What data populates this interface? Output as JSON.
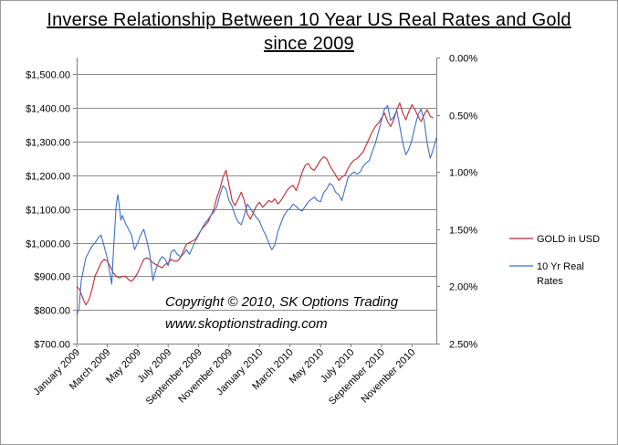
{
  "chart_data": {
    "type": "line",
    "title": "Inverse Relationship Between 10 Year US Real Rates and Gold since 2009",
    "title_lines": [
      "Inverse Relationship Between 10 Year US Real Rates and Gold",
      "since 2009"
    ],
    "x_tick_labels": [
      "January 2009",
      "March 2009",
      "May 2009",
      "July 2009",
      "September 2009",
      "November 2009",
      "January 2010",
      "March 2010",
      "May 2010",
      "July 2010",
      "September 2010",
      "November 2010"
    ],
    "x_range": [
      0,
      23.6
    ],
    "y_left": {
      "range": [
        700,
        1550
      ],
      "ticks": [
        1500,
        1400,
        1300,
        1200,
        1100,
        1000,
        900,
        800,
        700
      ],
      "tick_labels": [
        "$1,500.00",
        "$1,400.00",
        "$1,300.00",
        "$1,200.00",
        "$1,100.00",
        "$1,000.00",
        "$900.00",
        "$800.00",
        "$700.00"
      ]
    },
    "y_right": {
      "range": [
        0.0,
        2.5
      ],
      "inverted": true,
      "ticks": [
        0.0,
        0.5,
        1.0,
        1.5,
        2.0,
        2.5
      ],
      "tick_labels": [
        "0.00%",
        "0.50%",
        "1.00%",
        "1.50%",
        "2.00%",
        "2.50%"
      ]
    },
    "gridlines": true,
    "series": [
      {
        "name": "GOLD in USD",
        "axis": "left",
        "color": "#c0272d",
        "points": [
          [
            0.0,
            870
          ],
          [
            0.2,
            860
          ],
          [
            0.4,
            835
          ],
          [
            0.6,
            815
          ],
          [
            0.8,
            830
          ],
          [
            1.0,
            860
          ],
          [
            1.2,
            900
          ],
          [
            1.4,
            920
          ],
          [
            1.6,
            940
          ],
          [
            1.8,
            950
          ],
          [
            2.0,
            945
          ],
          [
            2.2,
            930
          ],
          [
            2.4,
            910
          ],
          [
            2.6,
            900
          ],
          [
            2.8,
            895
          ],
          [
            3.0,
            900
          ],
          [
            3.2,
            900
          ],
          [
            3.4,
            890
          ],
          [
            3.6,
            885
          ],
          [
            3.8,
            895
          ],
          [
            4.0,
            910
          ],
          [
            4.2,
            930
          ],
          [
            4.4,
            950
          ],
          [
            4.6,
            955
          ],
          [
            4.8,
            950
          ],
          [
            5.0,
            940
          ],
          [
            5.2,
            935
          ],
          [
            5.4,
            930
          ],
          [
            5.6,
            925
          ],
          [
            5.8,
            935
          ],
          [
            6.0,
            940
          ],
          [
            6.2,
            950
          ],
          [
            6.4,
            945
          ],
          [
            6.6,
            945
          ],
          [
            6.8,
            955
          ],
          [
            7.0,
            975
          ],
          [
            7.2,
            995
          ],
          [
            7.4,
            1000
          ],
          [
            7.6,
            1005
          ],
          [
            7.8,
            1010
          ],
          [
            8.0,
            1025
          ],
          [
            8.2,
            1040
          ],
          [
            8.4,
            1050
          ],
          [
            8.6,
            1060
          ],
          [
            8.8,
            1080
          ],
          [
            9.0,
            1100
          ],
          [
            9.2,
            1135
          ],
          [
            9.4,
            1160
          ],
          [
            9.6,
            1195
          ],
          [
            9.8,
            1215
          ],
          [
            10.0,
            1170
          ],
          [
            10.2,
            1125
          ],
          [
            10.4,
            1110
          ],
          [
            10.6,
            1130
          ],
          [
            10.8,
            1150
          ],
          [
            11.0,
            1125
          ],
          [
            11.2,
            1085
          ],
          [
            11.4,
            1070
          ],
          [
            11.6,
            1090
          ],
          [
            11.8,
            1110
          ],
          [
            12.0,
            1120
          ],
          [
            12.2,
            1105
          ],
          [
            12.4,
            1115
          ],
          [
            12.6,
            1125
          ],
          [
            12.8,
            1120
          ],
          [
            13.0,
            1130
          ],
          [
            13.2,
            1115
          ],
          [
            13.4,
            1125
          ],
          [
            13.6,
            1140
          ],
          [
            13.8,
            1155
          ],
          [
            14.0,
            1165
          ],
          [
            14.2,
            1170
          ],
          [
            14.4,
            1155
          ],
          [
            14.6,
            1180
          ],
          [
            14.8,
            1210
          ],
          [
            15.0,
            1230
          ],
          [
            15.2,
            1235
          ],
          [
            15.4,
            1220
          ],
          [
            15.6,
            1215
          ],
          [
            15.8,
            1230
          ],
          [
            16.0,
            1245
          ],
          [
            16.2,
            1255
          ],
          [
            16.4,
            1250
          ],
          [
            16.6,
            1230
          ],
          [
            16.8,
            1215
          ],
          [
            17.0,
            1200
          ],
          [
            17.2,
            1185
          ],
          [
            17.4,
            1195
          ],
          [
            17.6,
            1200
          ],
          [
            17.8,
            1220
          ],
          [
            18.0,
            1235
          ],
          [
            18.2,
            1245
          ],
          [
            18.4,
            1250
          ],
          [
            18.6,
            1260
          ],
          [
            18.8,
            1270
          ],
          [
            19.0,
            1290
          ],
          [
            19.2,
            1310
          ],
          [
            19.4,
            1330
          ],
          [
            19.6,
            1345
          ],
          [
            19.8,
            1355
          ],
          [
            20.0,
            1370
          ],
          [
            20.2,
            1385
          ],
          [
            20.4,
            1360
          ],
          [
            20.6,
            1345
          ],
          [
            20.8,
            1365
          ],
          [
            21.0,
            1395
          ],
          [
            21.2,
            1415
          ],
          [
            21.4,
            1385
          ],
          [
            21.6,
            1365
          ],
          [
            21.8,
            1390
          ],
          [
            22.0,
            1410
          ],
          [
            22.2,
            1395
          ],
          [
            22.4,
            1375
          ],
          [
            22.6,
            1360
          ],
          [
            22.8,
            1380
          ],
          [
            23.0,
            1395
          ],
          [
            23.2,
            1375
          ],
          [
            23.4,
            1370
          ]
        ]
      },
      {
        "name": "10 Yr Real Rates",
        "axis": "right",
        "color": "#3d6ec9",
        "points": [
          [
            0.0,
            2.25
          ],
          [
            0.15,
            2.2
          ],
          [
            0.3,
            1.95
          ],
          [
            0.45,
            1.85
          ],
          [
            0.6,
            1.75
          ],
          [
            0.8,
            1.7
          ],
          [
            1.0,
            1.65
          ],
          [
            1.2,
            1.62
          ],
          [
            1.4,
            1.58
          ],
          [
            1.6,
            1.55
          ],
          [
            1.8,
            1.65
          ],
          [
            2.0,
            1.75
          ],
          [
            2.2,
            1.9
          ],
          [
            2.3,
            1.98
          ],
          [
            2.4,
            1.72
          ],
          [
            2.5,
            1.5
          ],
          [
            2.6,
            1.28
          ],
          [
            2.7,
            1.2
          ],
          [
            2.8,
            1.3
          ],
          [
            2.9,
            1.42
          ],
          [
            3.0,
            1.38
          ],
          [
            3.2,
            1.45
          ],
          [
            3.4,
            1.5
          ],
          [
            3.6,
            1.55
          ],
          [
            3.8,
            1.68
          ],
          [
            4.0,
            1.62
          ],
          [
            4.2,
            1.55
          ],
          [
            4.4,
            1.5
          ],
          [
            4.6,
            1.6
          ],
          [
            4.8,
            1.72
          ],
          [
            5.0,
            1.95
          ],
          [
            5.2,
            1.85
          ],
          [
            5.4,
            1.78
          ],
          [
            5.6,
            1.74
          ],
          [
            5.8,
            1.76
          ],
          [
            6.0,
            1.82
          ],
          [
            6.2,
            1.7
          ],
          [
            6.4,
            1.68
          ],
          [
            6.6,
            1.72
          ],
          [
            6.8,
            1.74
          ],
          [
            7.0,
            1.72
          ],
          [
            7.2,
            1.68
          ],
          [
            7.4,
            1.72
          ],
          [
            7.6,
            1.66
          ],
          [
            7.8,
            1.6
          ],
          [
            8.0,
            1.55
          ],
          [
            8.2,
            1.5
          ],
          [
            8.4,
            1.45
          ],
          [
            8.6,
            1.42
          ],
          [
            8.8,
            1.38
          ],
          [
            9.0,
            1.35
          ],
          [
            9.2,
            1.3
          ],
          [
            9.4,
            1.2
          ],
          [
            9.6,
            1.12
          ],
          [
            9.8,
            1.15
          ],
          [
            10.0,
            1.25
          ],
          [
            10.2,
            1.3
          ],
          [
            10.4,
            1.38
          ],
          [
            10.6,
            1.44
          ],
          [
            10.8,
            1.46
          ],
          [
            11.0,
            1.38
          ],
          [
            11.2,
            1.28
          ],
          [
            11.4,
            1.32
          ],
          [
            11.6,
            1.36
          ],
          [
            11.8,
            1.4
          ],
          [
            12.0,
            1.43
          ],
          [
            12.2,
            1.5
          ],
          [
            12.4,
            1.55
          ],
          [
            12.6,
            1.62
          ],
          [
            12.8,
            1.68
          ],
          [
            13.0,
            1.64
          ],
          [
            13.2,
            1.52
          ],
          [
            13.4,
            1.45
          ],
          [
            13.6,
            1.38
          ],
          [
            13.8,
            1.34
          ],
          [
            14.0,
            1.32
          ],
          [
            14.2,
            1.28
          ],
          [
            14.4,
            1.3
          ],
          [
            14.6,
            1.33
          ],
          [
            14.8,
            1.34
          ],
          [
            15.0,
            1.3
          ],
          [
            15.2,
            1.26
          ],
          [
            15.4,
            1.24
          ],
          [
            15.6,
            1.22
          ],
          [
            15.8,
            1.25
          ],
          [
            16.0,
            1.26
          ],
          [
            16.2,
            1.18
          ],
          [
            16.4,
            1.15
          ],
          [
            16.6,
            1.1
          ],
          [
            16.8,
            1.12
          ],
          [
            17.0,
            1.18
          ],
          [
            17.2,
            1.2
          ],
          [
            17.4,
            1.25
          ],
          [
            17.6,
            1.15
          ],
          [
            17.8,
            1.05
          ],
          [
            18.0,
            1.02
          ],
          [
            18.2,
            1.0
          ],
          [
            18.4,
            1.02
          ],
          [
            18.6,
            1.0
          ],
          [
            18.8,
            0.95
          ],
          [
            19.0,
            0.92
          ],
          [
            19.2,
            0.9
          ],
          [
            19.4,
            0.82
          ],
          [
            19.6,
            0.75
          ],
          [
            19.8,
            0.65
          ],
          [
            20.0,
            0.55
          ],
          [
            20.2,
            0.45
          ],
          [
            20.4,
            0.42
          ],
          [
            20.6,
            0.55
          ],
          [
            20.8,
            0.52
          ],
          [
            21.0,
            0.46
          ],
          [
            21.2,
            0.6
          ],
          [
            21.4,
            0.75
          ],
          [
            21.6,
            0.85
          ],
          [
            21.8,
            0.8
          ],
          [
            22.0,
            0.72
          ],
          [
            22.2,
            0.6
          ],
          [
            22.4,
            0.5
          ],
          [
            22.6,
            0.45
          ],
          [
            22.8,
            0.55
          ],
          [
            23.0,
            0.75
          ],
          [
            23.2,
            0.88
          ],
          [
            23.4,
            0.8
          ],
          [
            23.6,
            0.7
          ]
        ]
      }
    ],
    "legend": {
      "position": "right",
      "entries": [
        {
          "label_lines": [
            "GOLD in USD"
          ],
          "color": "#c0272d"
        },
        {
          "label_lines": [
            "10 Yr Real",
            "Rates"
          ],
          "color": "#3d6ec9"
        }
      ]
    },
    "annotations": [
      "Copyright © 2010, SK Options Trading",
      "www.skoptionstrading.com"
    ]
  }
}
